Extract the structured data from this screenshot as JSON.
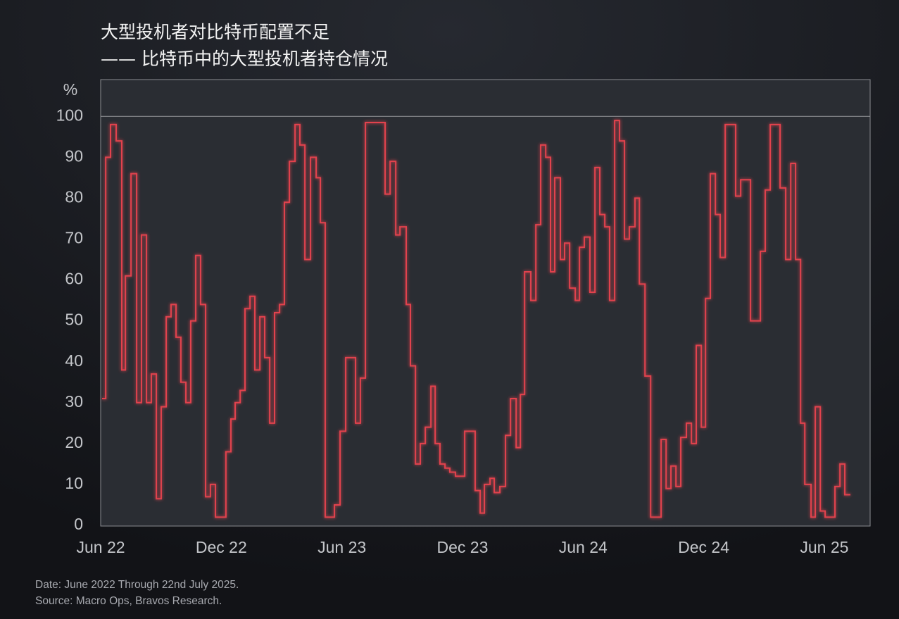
{
  "chart_data": {
    "type": "line",
    "step": "post",
    "title": "大型投机者对比特币配置不足",
    "subtitle": "—— 比特币中的大型投机者持仓情况",
    "y_unit": "%",
    "footnote": [
      "Date: June 2022 Through 22nd July 2025.",
      "Source: Macro Ops, Bravos Research."
    ],
    "xlim": [
      0,
      38.28
    ],
    "xticks": [
      {
        "value": 0,
        "label": "Jun 22"
      },
      {
        "value": 6,
        "label": "Dec 22"
      },
      {
        "value": 12,
        "label": "Jun 23"
      },
      {
        "value": 18,
        "label": "Dec 23"
      },
      {
        "value": 24,
        "label": "Jun 24"
      },
      {
        "value": 30,
        "label": "Dec 24"
      },
      {
        "value": 36,
        "label": "Jun 25"
      }
    ],
    "ylim": [
      0,
      109
    ],
    "yticks": [
      0,
      10,
      20,
      30,
      40,
      50,
      60,
      70,
      80,
      90,
      100
    ],
    "reference_line": 100,
    "series": [
      {
        "color": "#e2434e",
        "x": [
          0.07,
          0.25,
          0.49,
          0.77,
          1.05,
          1.23,
          1.51,
          1.79,
          2.03,
          2.28,
          2.52,
          2.77,
          3.01,
          3.26,
          3.5,
          3.75,
          3.99,
          4.24,
          4.48,
          4.73,
          4.97,
          5.22,
          5.46,
          5.71,
          6.23,
          6.48,
          6.69,
          6.94,
          7.18,
          7.43,
          7.67,
          7.92,
          8.16,
          8.41,
          8.65,
          8.9,
          9.14,
          9.39,
          9.67,
          9.91,
          10.16,
          10.44,
          10.72,
          10.93,
          11.17,
          11.63,
          11.91,
          12.19,
          12.68,
          12.92,
          13.17,
          14.15,
          14.4,
          14.68,
          14.89,
          15.2,
          15.41,
          15.66,
          15.9,
          16.15,
          16.43,
          16.64,
          16.88,
          17.13,
          17.37,
          17.65,
          18.11,
          18.63,
          18.88,
          19.09,
          19.37,
          19.58,
          19.86,
          20.14,
          20.39,
          20.67,
          20.88,
          21.09,
          21.4,
          21.65,
          21.89,
          22.14,
          22.38,
          22.59,
          22.87,
          23.08,
          23.33,
          23.61,
          23.82,
          24.06,
          24.34,
          24.59,
          24.83,
          25.08,
          25.32,
          25.57,
          25.81,
          26.06,
          26.3,
          26.58,
          26.8,
          27.08,
          27.36,
          27.88,
          28.13,
          28.37,
          28.62,
          28.86,
          29.14,
          29.39,
          29.63,
          29.88,
          30.09,
          30.33,
          30.58,
          30.82,
          31.07,
          31.59,
          31.84,
          32.33,
          32.82,
          33.06,
          33.31,
          33.8,
          34.08,
          34.33,
          34.57,
          34.82,
          35.03,
          35.34,
          35.55,
          35.8,
          36.04,
          36.53,
          36.78,
          37.02,
          37.3
        ],
        "values": [
          31,
          90,
          98,
          94,
          38,
          61,
          86,
          30,
          71,
          30,
          37,
          6.5,
          29,
          51,
          54,
          46,
          35,
          30,
          50,
          66,
          54,
          7,
          10,
          2,
          18,
          26,
          30,
          33,
          53,
          56,
          38,
          51,
          41,
          25,
          52,
          54,
          79,
          89,
          98,
          93,
          65,
          90,
          85,
          74,
          2,
          5,
          23,
          41,
          25,
          36,
          98.5,
          81,
          89,
          71,
          73,
          54,
          39,
          15,
          20,
          24,
          34,
          20,
          15,
          14,
          13,
          12,
          23,
          8.5,
          3,
          10,
          11.5,
          8,
          9.5,
          22,
          31,
          19,
          32,
          62,
          55,
          73.5,
          93,
          90,
          62,
          85,
          65,
          69,
          58,
          55,
          68,
          70.5,
          57,
          87.5,
          76,
          73,
          55,
          99,
          94,
          70,
          73,
          80,
          59,
          36.5,
          2,
          21,
          9,
          14.5,
          9.5,
          21.5,
          25,
          20,
          44,
          24,
          55.5,
          86,
          76,
          65.5,
          98,
          80.5,
          84.5,
          50,
          67,
          82,
          98,
          82.5,
          65,
          88.5,
          65,
          25,
          10,
          2,
          29,
          3.5,
          2,
          9.5,
          15,
          7.5,
          7.5
        ]
      }
    ]
  }
}
